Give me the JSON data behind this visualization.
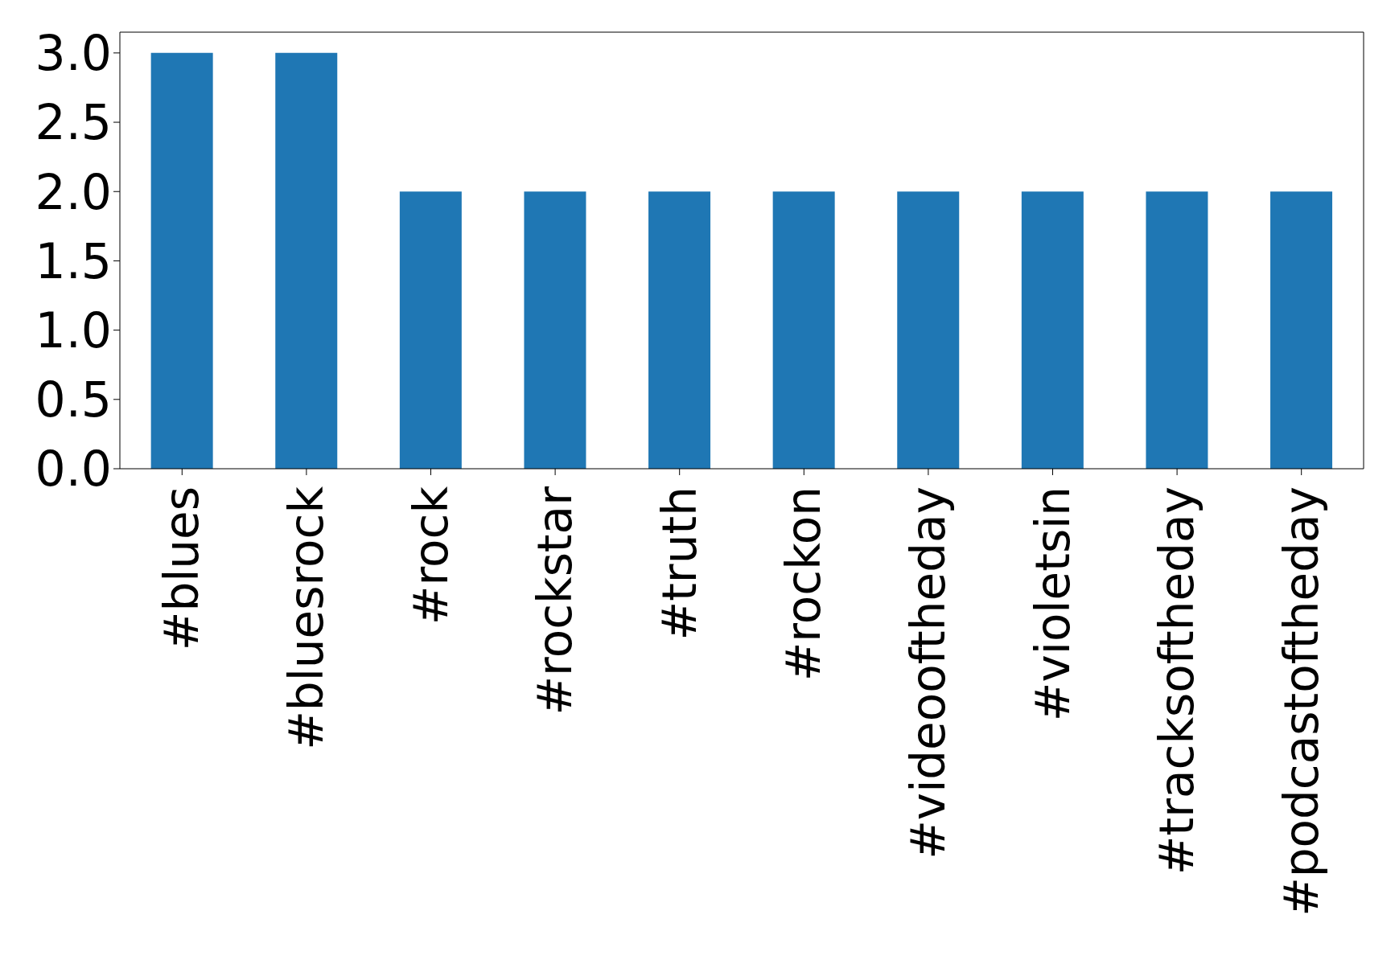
{
  "chart_data": {
    "type": "bar",
    "categories": [
      "#blues",
      "#bluesrock",
      "#rock",
      "#rockstar",
      "#truth",
      "#rockon",
      "#videooftheday",
      "#violetsin",
      "#tracksoftheday",
      "#podcastoftheday"
    ],
    "values": [
      3,
      3,
      2,
      2,
      2,
      2,
      2,
      2,
      2,
      2
    ],
    "color": "#1f77b4",
    "ylim": [
      0,
      3.15
    ],
    "yticks": [
      {
        "value": 0,
        "label": "0.0"
      },
      {
        "value": 0.5,
        "label": "0.5"
      },
      {
        "value": 1,
        "label": "1.0"
      },
      {
        "value": 1.5,
        "label": "1.5"
      },
      {
        "value": 2,
        "label": "2.0"
      },
      {
        "value": 2.5,
        "label": "2.5"
      },
      {
        "value": 3,
        "label": "3.0"
      }
    ]
  }
}
